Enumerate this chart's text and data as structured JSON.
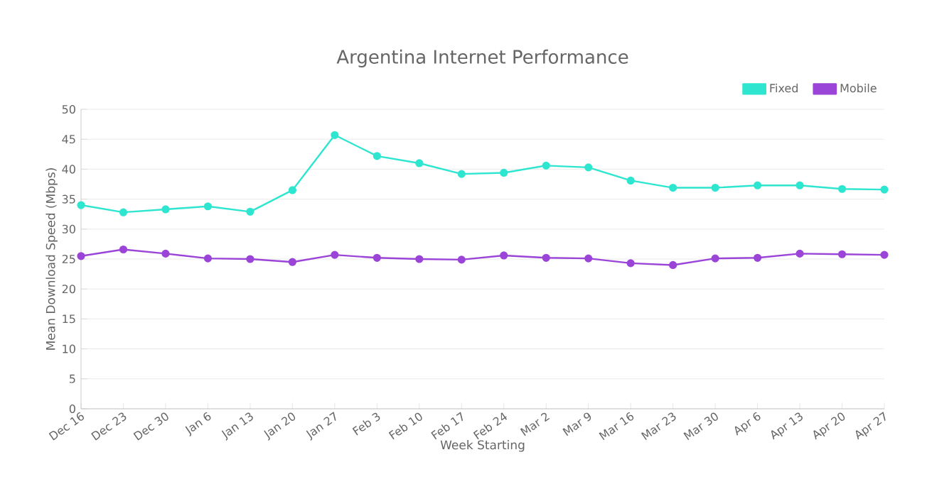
{
  "chart_data": {
    "type": "line",
    "title": "Argentina Internet Performance",
    "xlabel": "Week Starting",
    "ylabel": "Mean Download Speed (Mbps)",
    "categories": [
      "Dec 16",
      "Dec 23",
      "Dec 30",
      "Jan 6",
      "Jan 13",
      "Jan 20",
      "Jan 27",
      "Feb 3",
      "Feb 10",
      "Feb 17",
      "Feb 24",
      "Mar 2",
      "Mar 9",
      "Mar 16",
      "Mar 23",
      "Mar 30",
      "Apr 6",
      "Apr 13",
      "Apr 20",
      "Apr 27"
    ],
    "series": [
      {
        "name": "Fixed",
        "color": "#2ee6d0",
        "values": [
          34,
          32.8,
          33.3,
          33.8,
          32.9,
          36.5,
          45.7,
          42.2,
          41,
          39.2,
          39.4,
          40.6,
          40.3,
          38.1,
          36.9,
          36.9,
          37.3,
          37.3,
          36.7,
          36.6
        ]
      },
      {
        "name": "Mobile",
        "color": "#9b44d8",
        "values": [
          25.5,
          26.6,
          25.9,
          25.1,
          25,
          24.5,
          25.7,
          25.2,
          25,
          24.9,
          25.6,
          25.2,
          25.1,
          24.3,
          24,
          25.1,
          25.2,
          25.9,
          25.8,
          25.7
        ]
      }
    ],
    "ylim": [
      0,
      50
    ],
    "yticks": [
      0,
      5,
      10,
      15,
      20,
      25,
      30,
      35,
      40,
      45,
      50
    ],
    "grid": "y",
    "legend": "top right",
    "marker": "circle",
    "line_style": "solid"
  }
}
